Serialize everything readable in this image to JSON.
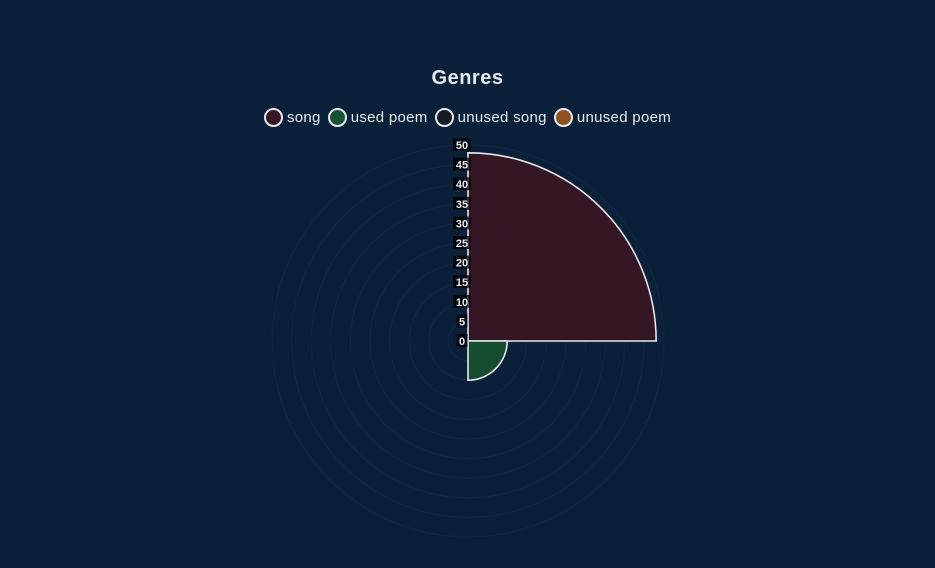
{
  "chart_data": {
    "type": "polarArea",
    "title": "Genres",
    "categories": [
      "song",
      "used poem",
      "unused song",
      "unused poem"
    ],
    "values": [
      48,
      10,
      0,
      0
    ],
    "colors": [
      "#3a1524",
      "#15522f",
      "#161c20",
      "#8e5220"
    ],
    "r_ticks": [
      0,
      5,
      10,
      15,
      20,
      25,
      30,
      35,
      40,
      45,
      50
    ],
    "rlim": [
      0,
      50
    ],
    "legend_position": "top",
    "grid": true
  }
}
